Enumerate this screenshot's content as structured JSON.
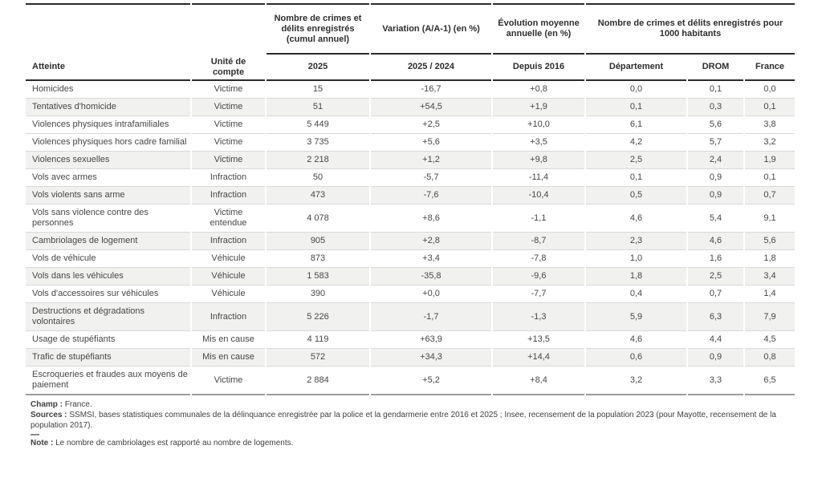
{
  "table": {
    "group_headers": {
      "count_group": "Nombre de crimes et délits enregistrés (cumul annuel)",
      "variation_group": "Variation (A/A-1) (en %)",
      "evolution_group": "Évolution moyenne annuelle (en %)",
      "per1000_group": "Nombre de crimes et délits enregistrés pour 1000 habitants"
    },
    "columns": [
      "Atteinte",
      "Unité de compte",
      "2025",
      "2025 / 2024",
      "Depuis 2016",
      "Département",
      "DROM",
      "France"
    ],
    "rows": [
      {
        "atteinte": "Homicides",
        "unite": "Victime",
        "n2025": "15",
        "variation": "-16,7",
        "evolution": "+0,8",
        "departement": "0,0",
        "drom": "0,1",
        "france": "0,0",
        "shaded": false
      },
      {
        "atteinte": "Tentatives d'homicide",
        "unite": "Victime",
        "n2025": "51",
        "variation": "+54,5",
        "evolution": "+1,9",
        "departement": "0,1",
        "drom": "0,3",
        "france": "0,1",
        "shaded": true
      },
      {
        "atteinte": "Violences physiques intrafamiliales",
        "unite": "Victime",
        "n2025": "5 449",
        "variation": "+2,5",
        "evolution": "+10,0",
        "departement": "6,1",
        "drom": "5,6",
        "france": "3,8",
        "shaded": false
      },
      {
        "atteinte": "Violences physiques hors cadre familial",
        "unite": "Victime",
        "n2025": "3 735",
        "variation": "+5,6",
        "evolution": "+3,5",
        "departement": "4,2",
        "drom": "5,7",
        "france": "3,2",
        "shaded": false
      },
      {
        "atteinte": "Violences sexuelles",
        "unite": "Victime",
        "n2025": "2 218",
        "variation": "+1,2",
        "evolution": "+9,8",
        "departement": "2,5",
        "drom": "2,4",
        "france": "1,9",
        "shaded": true
      },
      {
        "atteinte": "Vols avec armes",
        "unite": "Infraction",
        "n2025": "50",
        "variation": "-5,7",
        "evolution": "-11,4",
        "departement": "0,1",
        "drom": "0,9",
        "france": "0,1",
        "shaded": false
      },
      {
        "atteinte": "Vols violents sans arme",
        "unite": "Infraction",
        "n2025": "473",
        "variation": "-7,6",
        "evolution": "-10,4",
        "departement": "0,5",
        "drom": "0,9",
        "france": "0,7",
        "shaded": true
      },
      {
        "atteinte": "Vols sans violence contre des personnes",
        "unite": "Victime entendue",
        "n2025": "4 078",
        "variation": "+8,6",
        "evolution": "-1,1",
        "departement": "4,6",
        "drom": "5,4",
        "france": "9,1",
        "shaded": false
      },
      {
        "atteinte": "Cambriolages de logement",
        "unite": "Infraction",
        "n2025": "905",
        "variation": "+2,8",
        "evolution": "-8,7",
        "departement": "2,3",
        "drom": "4,6",
        "france": "5,6",
        "shaded": true
      },
      {
        "atteinte": "Vols de véhicule",
        "unite": "Véhicule",
        "n2025": "873",
        "variation": "+3,4",
        "evolution": "-7,8",
        "departement": "1,0",
        "drom": "1,6",
        "france": "1,8",
        "shaded": false
      },
      {
        "atteinte": "Vols dans les véhicules",
        "unite": "Véhicule",
        "n2025": "1 583",
        "variation": "-35,8",
        "evolution": "-9,6",
        "departement": "1,8",
        "drom": "2,5",
        "france": "3,4",
        "shaded": true
      },
      {
        "atteinte": "Vols d'accessoires sur véhicules",
        "unite": "Véhicule",
        "n2025": "390",
        "variation": "+0,0",
        "evolution": "-7,7",
        "departement": "0,4",
        "drom": "0,7",
        "france": "1,4",
        "shaded": false
      },
      {
        "atteinte": "Destructions et dégradations volontaires",
        "unite": "Infraction",
        "n2025": "5 226",
        "variation": "-1,7",
        "evolution": "-1,3",
        "departement": "5,9",
        "drom": "6,3",
        "france": "7,9",
        "shaded": true
      },
      {
        "atteinte": "Usage de stupéfiants",
        "unite": "Mis en cause",
        "n2025": "4 119",
        "variation": "+63,9",
        "evolution": "+13,5",
        "departement": "4,6",
        "drom": "4,4",
        "france": "4,5",
        "shaded": false
      },
      {
        "atteinte": "Trafic de stupéfiants",
        "unite": "Mis en cause",
        "n2025": "572",
        "variation": "+34,3",
        "evolution": "+14,4",
        "departement": "0,6",
        "drom": "0,9",
        "france": "0,8",
        "shaded": true
      },
      {
        "atteinte": "Escroqueries et fraudes aux moyens de paiement",
        "unite": "Victime",
        "n2025": "2 884",
        "variation": "+5,2",
        "evolution": "+8,4",
        "departement": "3,2",
        "drom": "3,3",
        "france": "6,5",
        "shaded": false
      }
    ]
  },
  "footer": {
    "champ_label": "Champ :",
    "champ_text": "France.",
    "sources_label": "Sources :",
    "sources_text": "SSMSI, bases statistiques communales de la délinquance enregistrée par la police et la gendarmerie entre 2016 et 2025 ; Insee, recensement de la population 2023 (pour Mayotte, recensement de la population 2017).",
    "note_label": "Note :",
    "note_text": "Le nombre de cambriolages est rapporté au nombre de logements."
  },
  "colors": {
    "heavy_border": "#2b2b2b",
    "light_separator": "#d9d9d9",
    "bottom_border": "#9c9c9c",
    "shaded_row": "#f1f1f0",
    "text": "#474747"
  }
}
